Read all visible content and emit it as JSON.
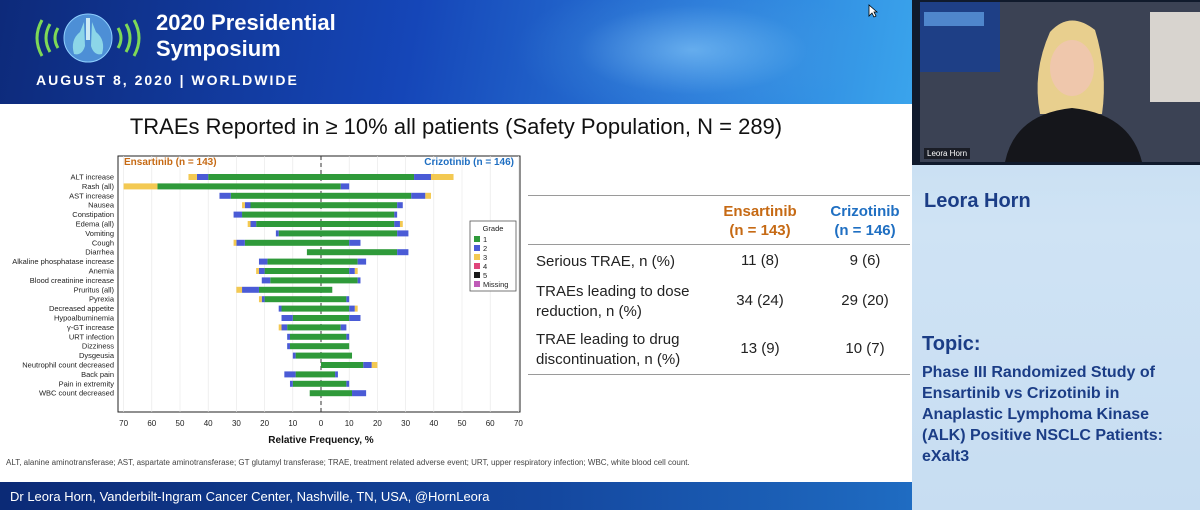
{
  "event": {
    "title_line1": "2020 Presidential",
    "title_line2": "Symposium",
    "date": "AUGUST 8, 2020 | WORLDWIDE"
  },
  "slide": {
    "title": "TRAEs Reported in ≥ 10% all patients (Safety Population, N = 289)",
    "footnote": "ALT, alanine aminotransferase; AST, aspartate aminotransferase; GT glutamyl transferase; TRAE, treatment related adverse event; URT, upper respiratory infection; WBC, white blood cell count.",
    "footer": "Dr Leora Horn, Vanderbilt-Ingram Cancer Center, Nashville, TN, USA, @HornLeora"
  },
  "chart_data": {
    "type": "bar",
    "orientation": "horizontal-butterfly",
    "left_group_label": "Ensartinib (n = 143)",
    "right_group_label": "Crizotinib (n = 146)",
    "xlabel": "Relative Frequency, %",
    "xlim": [
      -70,
      70
    ],
    "x_ticks": [
      70,
      60,
      50,
      40,
      30,
      20,
      10,
      0,
      10,
      20,
      30,
      40,
      50,
      60,
      70
    ],
    "legend_title": "Grade",
    "legend_position": "right",
    "grades": [
      "1",
      "2",
      "3",
      "4",
      "5",
      "Missing"
    ],
    "grade_colors": [
      "#2f9a3a",
      "#4a5bd6",
      "#f3c952",
      "#e0457b",
      "#1a1a1a",
      "#c05bb8"
    ],
    "categories": [
      "ALT increase",
      "Rash (all)",
      "AST increase",
      "Nausea",
      "Constipation",
      "Edema (all)",
      "Vomiting",
      "Cough",
      "Diarrhea",
      "Alkaline phosphatase increase",
      "Anemia",
      "Blood creatinine increase",
      "Pruritus (all)",
      "Pyrexia",
      "Decreased appetite",
      "Hypoalbuminemia",
      "γ-GT increase",
      "URT infection",
      "Dizziness",
      "Dysgeusia",
      "Neutrophil count decreased",
      "Back pain",
      "Pain in extremity",
      "WBC count decreased"
    ],
    "ensartinib": [
      [
        40,
        4,
        3,
        0
      ],
      [
        58,
        0,
        12,
        0
      ],
      [
        32,
        4,
        0,
        0
      ],
      [
        25,
        2,
        1,
        0
      ],
      [
        28,
        3,
        0,
        0
      ],
      [
        23,
        2,
        1,
        0
      ],
      [
        15,
        1,
        0,
        0
      ],
      [
        27,
        3,
        1,
        0
      ],
      [
        5,
        0,
        0,
        0
      ],
      [
        19,
        3,
        0,
        0
      ],
      [
        20,
        2,
        1,
        0
      ],
      [
        18,
        3,
        0,
        0
      ],
      [
        22,
        6,
        2,
        0
      ],
      [
        20,
        1,
        1,
        0
      ],
      [
        14,
        1,
        0,
        0
      ],
      [
        10,
        4,
        0,
        0
      ],
      [
        12,
        2,
        1,
        0
      ],
      [
        11,
        1,
        0,
        0
      ],
      [
        11,
        1,
        0,
        0
      ],
      [
        9,
        1,
        0,
        0
      ],
      [
        0,
        0,
        0,
        0
      ],
      [
        9,
        4,
        0,
        0
      ],
      [
        10,
        1,
        0,
        0
      ],
      [
        4,
        0,
        0,
        0
      ]
    ],
    "crizotinib": [
      [
        33,
        6,
        8,
        0
      ],
      [
        7,
        3,
        0,
        0
      ],
      [
        32,
        5,
        2,
        0
      ],
      [
        27,
        2,
        0,
        0
      ],
      [
        26,
        1,
        0,
        0
      ],
      [
        26,
        2,
        1,
        0
      ],
      [
        27,
        4,
        0,
        0
      ],
      [
        10,
        4,
        0,
        0
      ],
      [
        27,
        4,
        0,
        0
      ],
      [
        13,
        3,
        0,
        0
      ],
      [
        10,
        2,
        1,
        0
      ],
      [
        13,
        1,
        0,
        0
      ],
      [
        4,
        0,
        0,
        0
      ],
      [
        9,
        1,
        0,
        0
      ],
      [
        10,
        2,
        1,
        0
      ],
      [
        10,
        4,
        0,
        0
      ],
      [
        7,
        2,
        0,
        0
      ],
      [
        9,
        1,
        0,
        0
      ],
      [
        10,
        0,
        0,
        0
      ],
      [
        11,
        0,
        0,
        0
      ],
      [
        15,
        3,
        2,
        0
      ],
      [
        5,
        1,
        0,
        0
      ],
      [
        9,
        1,
        0,
        0
      ],
      [
        11,
        5,
        0,
        0
      ]
    ]
  },
  "table": {
    "col1_line1": "Ensartinib",
    "col1_line2": "(n = 143)",
    "col2_line1": "Crizotinib",
    "col2_line2": "(n = 146)",
    "col1_color": "#c66a14",
    "col2_color": "#1f6fc2",
    "rows": [
      {
        "label_line1": "Serious TRAE, n (%)",
        "label_line2": "",
        "ens": "11 (8)",
        "criz": "9 (6)"
      },
      {
        "label_line1": "TRAEs leading to dose",
        "label_line2": "reduction, n (%)",
        "ens": "34 (24)",
        "criz": "29 (20)"
      },
      {
        "label_line1": "TRAE leading to drug",
        "label_line2": "discontinuation, n (%)",
        "ens": "13 (9)",
        "criz": "10 (7)"
      }
    ]
  },
  "speaker": {
    "name": "Leora Horn",
    "cam_label": "Leora Horn",
    "topic_heading": "Topic:",
    "topic": "Phase III Randomized Study of Ensartinib vs Crizotinib in Anaplastic Lymphoma Kinase (ALK) Positive NSCLC Patients: eXalt3"
  },
  "colors": {
    "banner": "#1546b8",
    "speaker_text": "#1b3d86",
    "ensartinib_label": "#c66a14",
    "crizotinib_label": "#1f6fc2"
  }
}
